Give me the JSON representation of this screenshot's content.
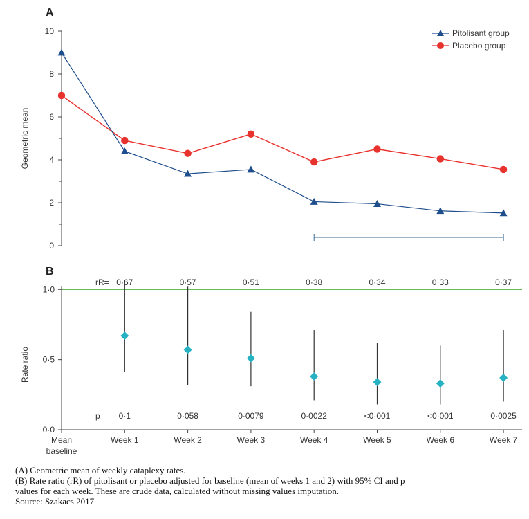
{
  "chart_data": [
    {
      "panel": "A",
      "type": "line",
      "ylabel": "Geometric mean",
      "ylim": [
        0,
        10
      ],
      "yticks": [
        0,
        2,
        4,
        6,
        8,
        10
      ],
      "categories": [
        "Mean baseline",
        "Week 1",
        "Week 2",
        "Week 3",
        "Week 4",
        "Week 5",
        "Week 6",
        "Week 7"
      ],
      "series": [
        {
          "name": "Pitolisant group",
          "color": "#1f4e8c",
          "marker": "triangle",
          "values": [
            9.0,
            4.4,
            3.35,
            3.55,
            2.05,
            1.95,
            1.62,
            1.52
          ]
        },
        {
          "name": "Placebo group",
          "color": "#e8322d",
          "marker": "circle",
          "values": [
            7.0,
            4.9,
            4.3,
            5.2,
            3.9,
            4.5,
            4.05,
            3.55
          ]
        }
      ],
      "bracket": {
        "from": "Week 4",
        "to": "Week 7"
      },
      "legend_position": "top-right"
    },
    {
      "panel": "B",
      "type": "scatter",
      "ylabel": "Rate ratio",
      "ylim": [
        0,
        1.1
      ],
      "yticks": [
        "0·0",
        "0·5",
        "1·0"
      ],
      "ytick_values": [
        0,
        0.5,
        1.0
      ],
      "reference_line": {
        "value": 1.0,
        "color": "#66bb55"
      },
      "categories": [
        "Week 1",
        "Week 2",
        "Week 3",
        "Week 4",
        "Week 5",
        "Week 6",
        "Week 7"
      ],
      "marker_color": "#27b2c4",
      "rR_prefix": "rR=",
      "rR_labels": [
        "0·67",
        "0·57",
        "0·51",
        "0·38",
        "0·34",
        "0·33",
        "0·37"
      ],
      "values": [
        0.67,
        0.57,
        0.51,
        0.38,
        0.34,
        0.33,
        0.37
      ],
      "ci_low": [
        0.41,
        0.32,
        0.31,
        0.21,
        0.18,
        0.18,
        0.2
      ],
      "ci_high": [
        1.07,
        1.02,
        0.84,
        0.71,
        0.62,
        0.6,
        0.71
      ],
      "p_prefix": "p=",
      "p_labels": [
        "0·1",
        "0·058",
        "0·0079",
        "0·0022",
        "<0·001",
        "<0·001",
        "0·0025"
      ]
    }
  ],
  "xaxis_labels": [
    "Mean",
    "baseline",
    "Week 1",
    "Week 2",
    "Week 3",
    "Week 4",
    "Week 5",
    "Week 6",
    "Week 7"
  ],
  "caption": {
    "line1": "(A) Geometric mean of weekly cataplexy rates.",
    "line2": "(B) Rate ratio (rR) of pitolisant or placebo adjusted for baseline (mean of weeks 1 and 2) with 95% CI and p",
    "line3": "values for each week. These are crude data, calculated without missing values imputation.",
    "line4": "Source: Szakacs 2017"
  }
}
